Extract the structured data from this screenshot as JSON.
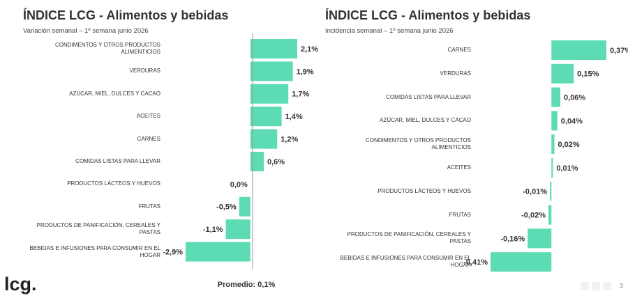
{
  "chart_data": [
    {
      "type": "bar",
      "orientation": "horizontal",
      "title": "ÍNDICE LCG - Alimentos y bebidas",
      "subtitle": "Variación semanal – 1º semana junio 2026",
      "categories": [
        "CONDIMENTOS Y OTROS PRODUCTOS ALIMENTICIOS",
        "VERDURAS",
        "AZÚCAR, MIEL, DULCES Y CACAO",
        "ACEITES",
        "CARNES",
        "COMIDAS LISTAS PARA LLEVAR",
        "PRODUCTOS LÁCTEOS Y HUEVOS",
        "FRUTAS",
        "PRODUCTOS DE PANIFICACIÓN, CEREALES Y PASTAS",
        "BEBIDAS E INFUSIONES PARA CONSUMIR EN EL HOGAR"
      ],
      "values": [
        2.1,
        1.9,
        1.7,
        1.4,
        1.2,
        0.6,
        0.0,
        -0.5,
        -1.1,
        -2.9
      ],
      "value_labels": [
        "2,1%",
        "1,9%",
        "1,7%",
        "1,4%",
        "1,2%",
        "0,6%",
        "0,0%",
        "-0,5%",
        "-1,1%",
        "-2,9%"
      ],
      "color": "#5ddbb4",
      "xlim": [
        -2.9,
        2.1
      ],
      "average": {
        "value": 0.1,
        "label": "Promedio: 0,1%"
      }
    },
    {
      "type": "bar",
      "orientation": "horizontal",
      "title": "ÍNDICE LCG - Alimentos y bebidas",
      "subtitle": "Incidencia semanal – 1º semana junio 2026",
      "categories": [
        "CARNES",
        "VERDURAS",
        "COMIDAS LISTAS PARA LLEVAR",
        "AZÚCAR, MIEL, DULCES Y CACAO",
        "CONDIMENTOS Y OTROS PRODUCTOS ALIMENTICIOS",
        "ACEITES",
        "PRODUCTOS LÁCTEOS Y HUEVOS",
        "FRUTAS",
        "PRODUCTOS DE PANIFICACIÓN, CEREALES Y PASTAS",
        "BEBIDAS E INFUSIONES PARA CONSUMIR EN EL HOGAR"
      ],
      "values": [
        0.37,
        0.15,
        0.06,
        0.04,
        0.02,
        0.01,
        -0.01,
        -0.02,
        -0.16,
        -0.41
      ],
      "value_labels": [
        "0,37%",
        "0,15%",
        "0,06%",
        "0,04%",
        "0,02%",
        "0,01%",
        "-0,01%",
        "-0,02%",
        "-0,16%",
        "-0,41%"
      ],
      "color": "#5ddbb4",
      "xlim": [
        -0.41,
        0.37
      ]
    }
  ],
  "footer": {
    "logo": "lcg.",
    "page": "3"
  }
}
